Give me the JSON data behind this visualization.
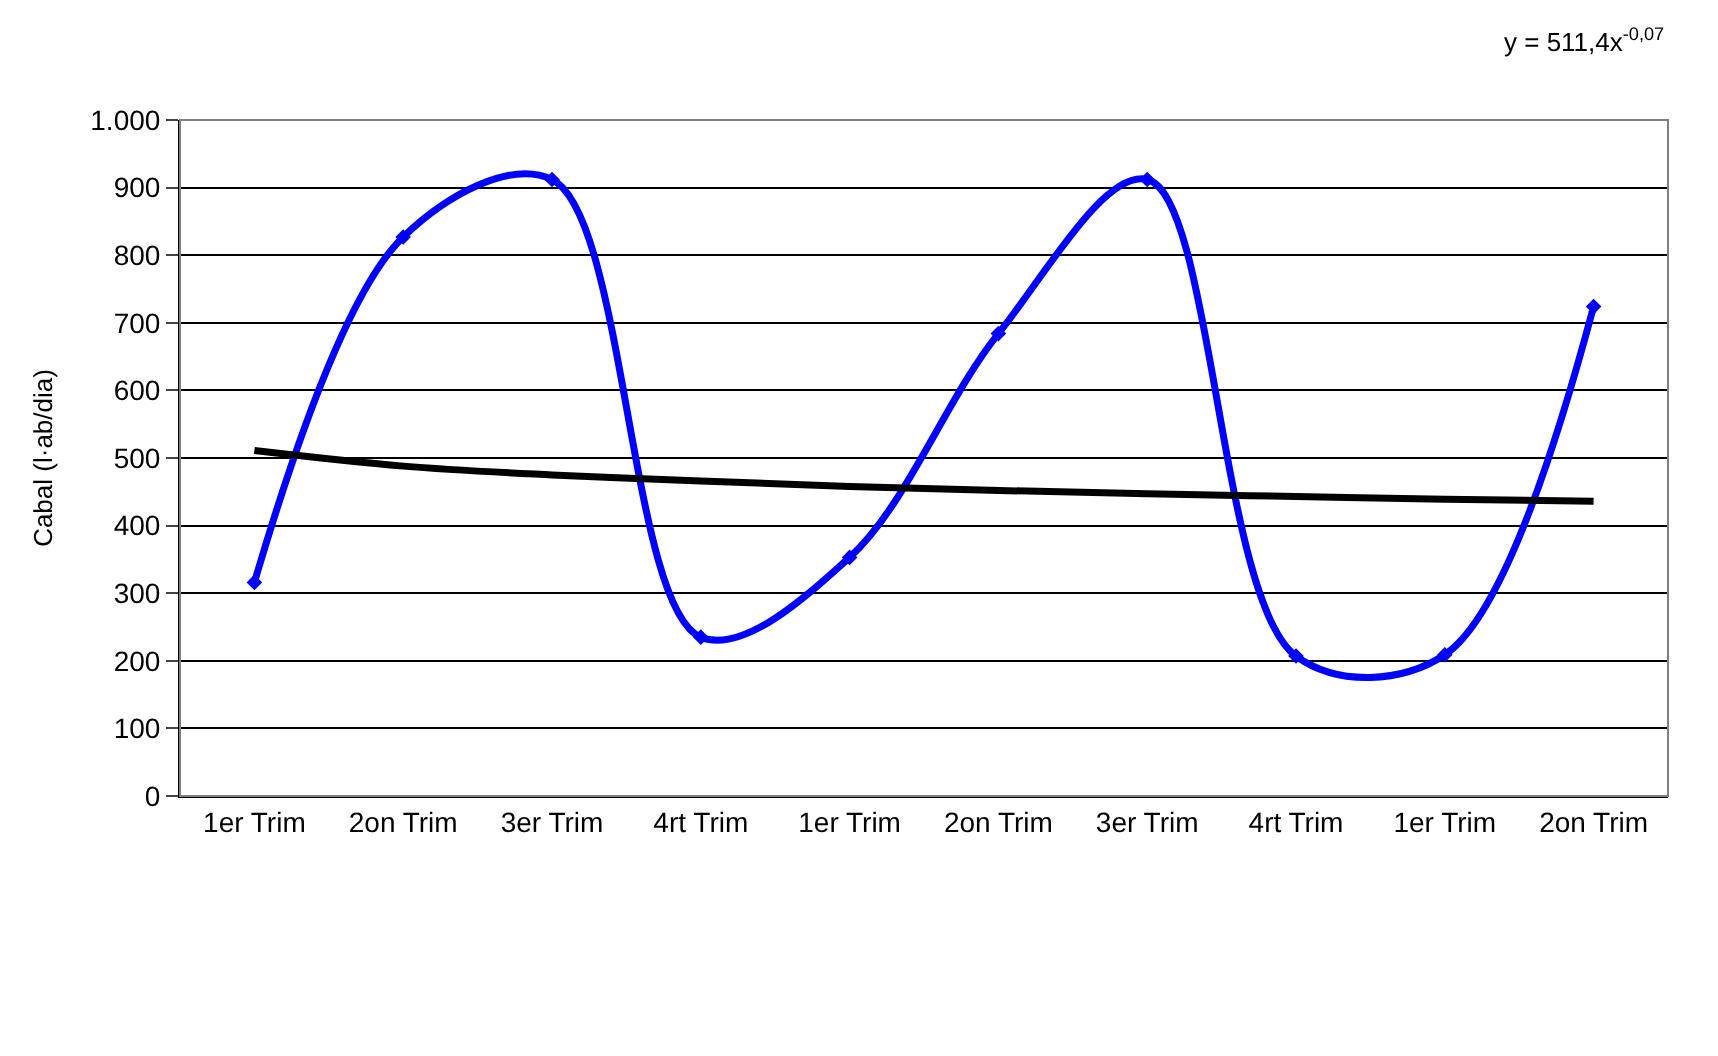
{
  "chart_data": {
    "type": "line",
    "ylabel": "Cabal (l·ab/dia)",
    "categories": [
      "1er Trim",
      "2on Trim",
      "3er Trim",
      "4rt Trim",
      "1er Trim",
      "2on Trim",
      "3er Trim",
      "4rt Trim",
      "1er Trim",
      "2on Trim"
    ],
    "series": [
      {
        "color": "#0000ff",
        "values": [
          316,
          827,
          912,
          235,
          353,
          684,
          912,
          207,
          209,
          724
        ],
        "marker": "diamond"
      },
      {
        "color": "#000000",
        "values": [
          511,
          488,
          475,
          466,
          458,
          452,
          447,
          443,
          439,
          436
        ],
        "marker": "none"
      }
    ],
    "ylim": [
      0,
      1000
    ],
    "yticks": [
      0,
      100,
      200,
      300,
      400,
      500,
      600,
      700,
      800,
      900,
      {
        "value": 1000,
        "label": "1.000"
      }
    ],
    "grid": "y",
    "annotations": [
      "y = 511,4x$^{-0,07}$"
    ]
  }
}
